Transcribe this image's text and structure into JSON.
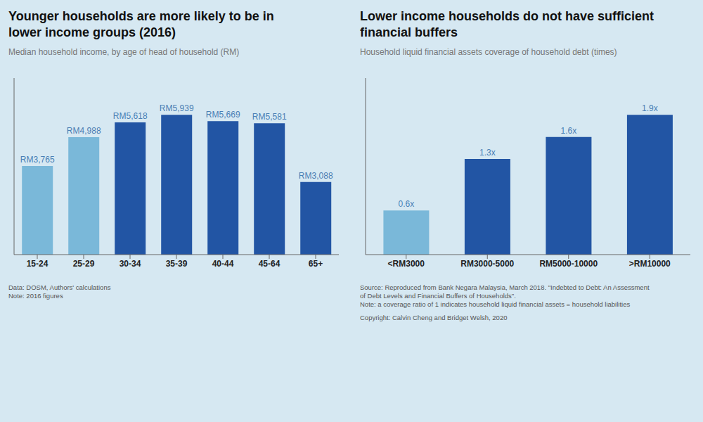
{
  "chart_data": [
    {
      "type": "bar",
      "title": "Younger households are more likely to be in\nlower income groups (2016)",
      "subtitle": "Median household income, by age of head of household (RM)",
      "categories": [
        "15-24",
        "25-29",
        "30-34",
        "35-39",
        "40-44",
        "45-64",
        "65+"
      ],
      "values": [
        3765,
        4988,
        5618,
        5939,
        5669,
        5581,
        3088
      ],
      "value_labels": [
        "RM3,765",
        "RM4,988",
        "RM5,618",
        "RM5,939",
        "RM5,669",
        "RM5,581",
        "RM3,088"
      ],
      "colors": [
        "#7ab8d9",
        "#7ab8d9",
        "#2255a4",
        "#2255a4",
        "#2255a4",
        "#2255a4",
        "#2255a4"
      ],
      "ylim": [
        0,
        7500
      ],
      "data_labels": true,
      "tick_labels": "x",
      "grid": false,
      "annotations": [
        "Data: DOSM, Authors' calculations\nNote: 2016  figures"
      ]
    },
    {
      "type": "bar",
      "title": "Lower income households do not have sufficient\nfinancial buffers",
      "subtitle": "Household liquid financial assets coverage of household debt (times)",
      "categories": [
        "<RM3000",
        "RM3000-5000",
        "RM5000-10000",
        ">RM10000"
      ],
      "values": [
        0.6,
        1.3,
        1.6,
        1.9
      ],
      "value_labels": [
        "0.6x",
        "1.3x",
        "1.6x",
        "1.9x"
      ],
      "colors": [
        "#7ab8d9",
        "#2255a4",
        "#2255a4",
        "#2255a4"
      ],
      "ylim": [
        0,
        2.4
      ],
      "data_labels": true,
      "tick_labels": "x",
      "grid": false,
      "annotations": [
        "Source: Reproduced from Bank Negara Malaysia, March 2018. \"Indebted to Debt: An Assessment\nof Debt Levels and Financial Buffers of Households\".\nNote: a coverage ratio of 1 indicates household liquid financial assets = household liabilities",
        "Copyright: Calvin Cheng and Bridget Welsh, 2020"
      ]
    }
  ]
}
